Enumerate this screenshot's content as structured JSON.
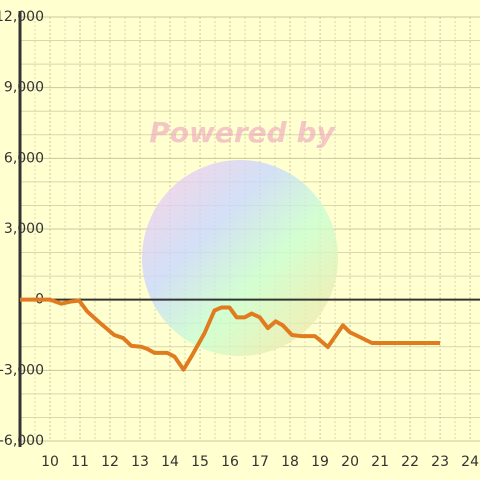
{
  "chart_data": {
    "type": "line",
    "watermark": "Powered by",
    "x": [
      9,
      10,
      10.37,
      10.7,
      10.97,
      11.24,
      11.64,
      12.14,
      12.44,
      12.71,
      13.04,
      13.24,
      13.48,
      13.91,
      14.15,
      14.45,
      14.71,
      15.15,
      15.48,
      15.72,
      15.98,
      16.22,
      16.49,
      16.72,
      16.99,
      17.26,
      17.52,
      17.76,
      18.06,
      18.39,
      18.83,
      18.99,
      19.26,
      19.76,
      19.99,
      20.33,
      20.73,
      23
    ],
    "series": [
      {
        "color": "#e07b20",
        "values": [
          0,
          0,
          -170,
          -80,
          -40,
          -500,
          -960,
          -1500,
          -1630,
          -1960,
          -2000,
          -2090,
          -2260,
          -2260,
          -2420,
          -2970,
          -2420,
          -1420,
          -460,
          -330,
          -330,
          -750,
          -750,
          -590,
          -750,
          -1210,
          -920,
          -1090,
          -1500,
          -1550,
          -1550,
          -1710,
          -2010,
          -1090,
          -1380,
          -1590,
          -1840,
          -1840
        ]
      }
    ],
    "xlim": [
      9,
      24.33
    ],
    "xticks": [
      10,
      11,
      12,
      13,
      14,
      15,
      16,
      17,
      18,
      19,
      20,
      21,
      22,
      23,
      24
    ],
    "ylim": [
      -6000,
      12000
    ],
    "yticks": [
      {
        "value": -6000,
        "label": "-6,000"
      },
      {
        "value": -3000,
        "label": "-3,000"
      },
      0,
      {
        "value": 3000,
        "label": "3,000"
      },
      {
        "value": 6000,
        "label": "6,000"
      },
      {
        "value": 9000,
        "label": "9,000"
      },
      {
        "value": 12000,
        "label": "12,000"
      }
    ],
    "grid": true
  }
}
